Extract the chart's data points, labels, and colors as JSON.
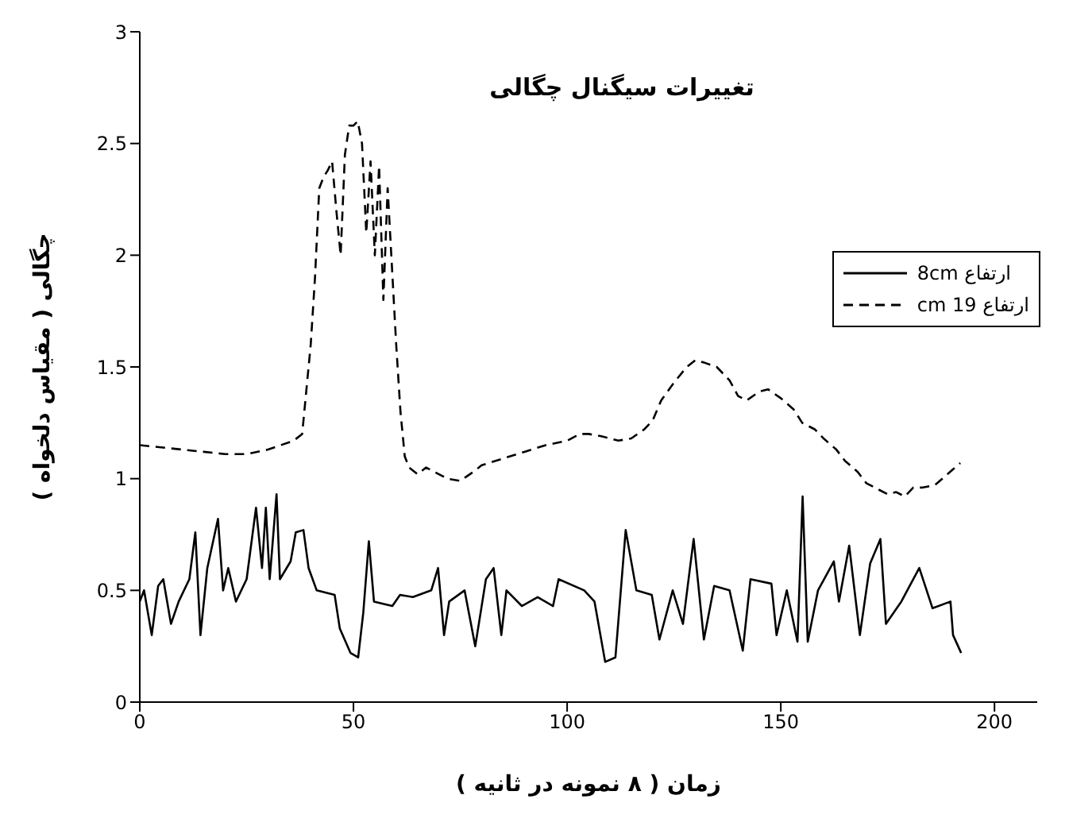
{
  "chart_data": {
    "type": "line",
    "title": "تغییرات سیگنال چگالی",
    "xlabel": "زمان ( ۸ نمونه در ثانیه )",
    "ylabel": "چگالی ( مقیاس دلخواه )",
    "xlim": [
      0,
      210
    ],
    "xticks": [
      0,
      50,
      100,
      150,
      200
    ],
    "ylim": [
      0,
      3
    ],
    "yticks": [
      0,
      0.5,
      1,
      1.5,
      2,
      2.5,
      3
    ],
    "grid": false,
    "legend": "right",
    "marker": "none",
    "series": [
      {
        "name": "ارتفاع 8cm",
        "color": "#000000",
        "line_style": "solid",
        "x": [
          0,
          1,
          2.8,
          4.3,
          5.5,
          7.3,
          9.1,
          11.6,
          13,
          14.2,
          15.8,
          18.3,
          19.5,
          20.7,
          22.5,
          25,
          27.2,
          28.6,
          29.5,
          30.4,
          32,
          32.8,
          35.3,
          36.5,
          38.3,
          39.5,
          41.4,
          45.6,
          46.8,
          49.3,
          51.1,
          52.3,
          53.6,
          54.8,
          59.1,
          60.9,
          63.9,
          68.2,
          69.8,
          71.2,
          72.4,
          76,
          78.5,
          81,
          82.8,
          84.6,
          85.8,
          89.4,
          93.1,
          96.7,
          98,
          104,
          106.4,
          108.9,
          111.3,
          113.7,
          116.2,
          119.8,
          121.6,
          124.7,
          127.1,
          129.6,
          132,
          134.4,
          138,
          141.1,
          142.9,
          147.8,
          149,
          151.4,
          153.9,
          155.1,
          156.3,
          158.7,
          162.4,
          163.6,
          166,
          168.5,
          170.9,
          173.3,
          174.6,
          178.2,
          182.4,
          185.5,
          189.7,
          190.3,
          192.2
        ],
        "values": [
          0.45,
          0.5,
          0.3,
          0.52,
          0.55,
          0.35,
          0.45,
          0.55,
          0.76,
          0.3,
          0.6,
          0.82,
          0.5,
          0.6,
          0.45,
          0.55,
          0.87,
          0.6,
          0.87,
          0.55,
          0.93,
          0.55,
          0.63,
          0.76,
          0.77,
          0.6,
          0.5,
          0.48,
          0.33,
          0.22,
          0.2,
          0.4,
          0.72,
          0.45,
          0.43,
          0.48,
          0.47,
          0.5,
          0.6,
          0.3,
          0.45,
          0.5,
          0.25,
          0.55,
          0.6,
          0.3,
          0.5,
          0.43,
          0.47,
          0.43,
          0.55,
          0.5,
          0.45,
          0.18,
          0.2,
          0.77,
          0.5,
          0.48,
          0.28,
          0.5,
          0.35,
          0.73,
          0.28,
          0.52,
          0.5,
          0.23,
          0.55,
          0.53,
          0.3,
          0.5,
          0.27,
          0.92,
          0.27,
          0.5,
          0.63,
          0.45,
          0.7,
          0.3,
          0.62,
          0.73,
          0.35,
          0.45,
          0.6,
          0.42,
          0.45,
          0.3,
          0.22
        ]
      },
      {
        "name": "ارتفاع 19 cm",
        "color": "#000000",
        "line_style": "dashed",
        "x": [
          0,
          5,
          10,
          15,
          20,
          25,
          30,
          33,
          36,
          38,
          39,
          40,
          41,
          42,
          43,
          44,
          45,
          46,
          47,
          48,
          49,
          50,
          51,
          52,
          53,
          54,
          55,
          56,
          57,
          58,
          59,
          60,
          61,
          62,
          63,
          65,
          67,
          70,
          72,
          75,
          78,
          80,
          85,
          90,
          95,
          100,
          103,
          105,
          108,
          112,
          115,
          118,
          120,
          122,
          125,
          128,
          130,
          132,
          135,
          138,
          140,
          142,
          145,
          147,
          150,
          153,
          155,
          158,
          160,
          163,
          165,
          168,
          170,
          173,
          175,
          177,
          179,
          181,
          183,
          186,
          189,
          192
        ],
        "values": [
          1.15,
          1.14,
          1.13,
          1.12,
          1.11,
          1.11,
          1.13,
          1.15,
          1.17,
          1.2,
          1.4,
          1.6,
          1.9,
          2.3,
          2.35,
          2.38,
          2.42,
          2.2,
          2,
          2.45,
          2.58,
          2.58,
          2.6,
          2.5,
          2.1,
          2.42,
          2,
          2.4,
          1.8,
          2.3,
          1.95,
          1.6,
          1.3,
          1.1,
          1.05,
          1.02,
          1.05,
          1.02,
          1,
          0.99,
          1.03,
          1.06,
          1.09,
          1.12,
          1.15,
          1.17,
          1.2,
          1.2,
          1.19,
          1.17,
          1.18,
          1.22,
          1.26,
          1.35,
          1.43,
          1.5,
          1.53,
          1.52,
          1.5,
          1.44,
          1.37,
          1.35,
          1.39,
          1.4,
          1.36,
          1.31,
          1.25,
          1.22,
          1.18,
          1.13,
          1.08,
          1.03,
          0.98,
          0.95,
          0.93,
          0.94,
          0.92,
          0.96,
          0.96,
          0.97,
          1.02,
          1.07
        ]
      }
    ]
  }
}
